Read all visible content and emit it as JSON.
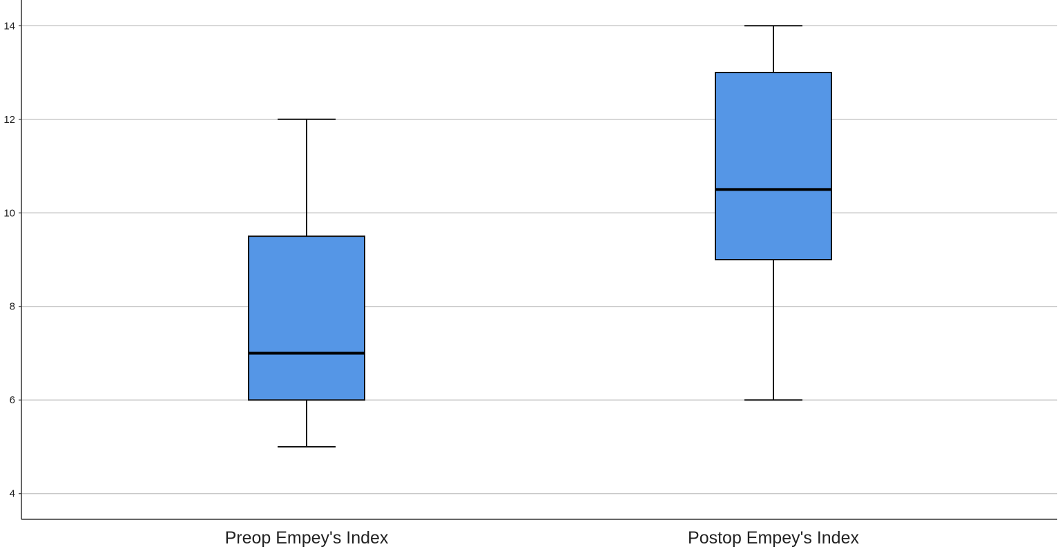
{
  "chart_data": {
    "type": "boxplot",
    "title": "",
    "xlabel": "",
    "ylabel": "",
    "ylim": [
      3.45,
      14.55
    ],
    "yticks": [
      4,
      6,
      8,
      10,
      12,
      14
    ],
    "grid": true,
    "legend": "none",
    "box_color": "#5596e6",
    "categories": [
      "Preop Empey's Index",
      "Postop Empey's Index"
    ],
    "boxes": [
      {
        "label": "Preop Empey's Index",
        "min": 5,
        "q1": 6,
        "median": 7,
        "q3": 9.5,
        "max": 12
      },
      {
        "label": "Postop Empey's Index",
        "min": 6,
        "q1": 9,
        "median": 10.5,
        "q3": 13,
        "max": 14
      }
    ]
  }
}
